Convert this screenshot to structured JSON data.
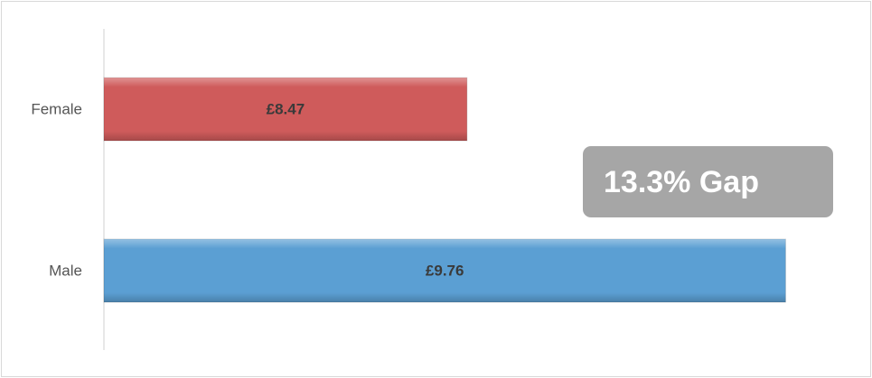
{
  "chart_data": {
    "type": "bar",
    "orientation": "horizontal",
    "categories": [
      "Female",
      "Male"
    ],
    "values": [
      8.47,
      9.76
    ],
    "value_labels": [
      "£8.47",
      "£9.76"
    ],
    "colors": [
      "#cf5b5b",
      "#5b9fd3"
    ],
    "xlim": [
      7,
      10
    ],
    "annotation": "13.3% Gap"
  }
}
